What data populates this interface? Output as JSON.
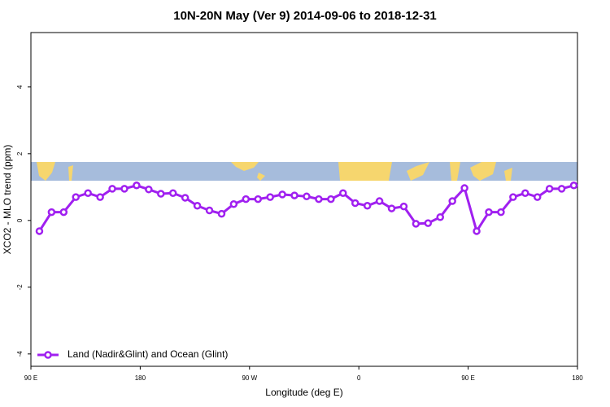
{
  "chart_data": {
    "type": "line",
    "title": "10N-20N May (Ver 9)   2014-09-06 to 2018-12-31",
    "x_label": "Longitude (deg E)",
    "y_label": "XCO2 - MLO trend (ppm)",
    "xlim": [
      90,
      540
    ],
    "ylim": [
      -4.37,
      5.63
    ],
    "xticks": [
      {
        "value": 90,
        "label": "90 E"
      },
      180,
      {
        "value": 270,
        "label": "90 W"
      },
      {
        "value": 360,
        "label": "0"
      },
      {
        "value": 450,
        "label": "90 E"
      },
      {
        "value": 540,
        "label": "180"
      }
    ],
    "yticks": [
      -4,
      -2,
      0,
      2,
      4
    ],
    "legend": "bottom-left",
    "x": [
      97,
      107,
      117,
      127,
      137,
      147,
      157,
      167,
      177,
      187,
      197,
      207,
      217,
      227,
      237,
      247,
      257,
      267,
      277,
      287,
      297,
      307,
      317,
      327,
      337,
      347,
      357,
      367,
      377,
      387,
      397,
      407,
      417,
      427,
      437,
      447,
      457,
      467,
      477,
      487,
      497,
      507,
      517,
      527,
      537
    ],
    "series": [
      {
        "name": "Land (Nadir&Glint) and Ocean (Glint)",
        "color": "#a020f0",
        "values": [
          -0.32,
          0.25,
          0.25,
          0.7,
          0.82,
          0.7,
          0.95,
          0.95,
          1.05,
          0.93,
          0.8,
          0.82,
          0.68,
          0.44,
          0.3,
          0.2,
          0.49,
          0.64,
          0.64,
          0.7,
          0.78,
          0.75,
          0.72,
          0.64,
          0.64,
          0.82,
          0.52,
          0.44,
          0.58,
          0.36,
          0.42,
          -0.1,
          -0.08,
          0.1,
          0.58,
          0.97,
          -0.32,
          0.25,
          0.25,
          0.7,
          0.82,
          0.7,
          0.95,
          0.95,
          1.05
        ]
      }
    ]
  }
}
